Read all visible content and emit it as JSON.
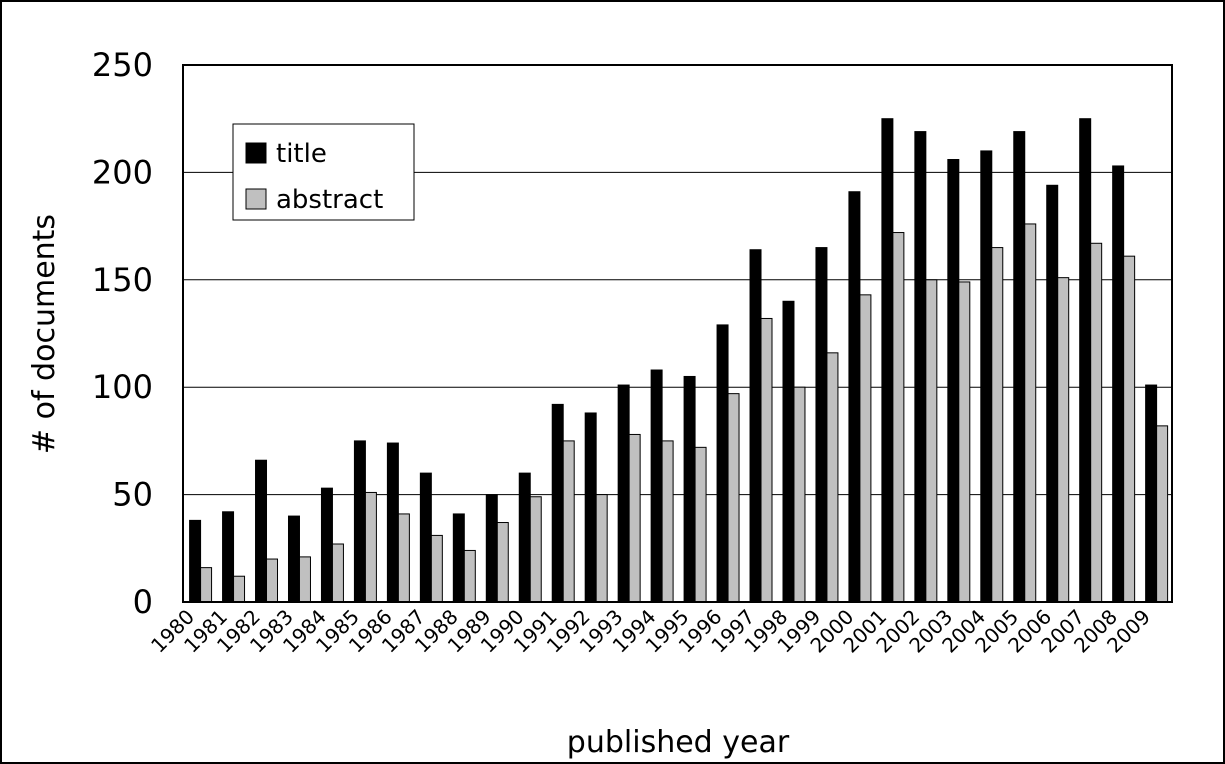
{
  "chart_data": {
    "type": "bar",
    "x_label": "published year",
    "y_label": "# of documents",
    "categories": [
      "1980",
      "1981",
      "1982",
      "1983",
      "1984",
      "1985",
      "1986",
      "1987",
      "1988",
      "1989",
      "1990",
      "1991",
      "1992",
      "1993",
      "1994",
      "1995",
      "1996",
      "1997",
      "1998",
      "1999",
      "2000",
      "2001",
      "2002",
      "2003",
      "2004",
      "2005",
      "2006",
      "2007",
      "2008",
      "2009"
    ],
    "series": [
      {
        "name": "title",
        "color": "#000000",
        "values": [
          38,
          42,
          66,
          40,
          53,
          75,
          74,
          60,
          41,
          50,
          60,
          92,
          88,
          101,
          108,
          105,
          129,
          164,
          140,
          165,
          191,
          225,
          219,
          206,
          210,
          219,
          194,
          225,
          203,
          101
        ]
      },
      {
        "name": "abstract",
        "color": "#c0c0c0",
        "values": [
          16,
          12,
          20,
          21,
          27,
          51,
          41,
          31,
          24,
          37,
          49,
          75,
          50,
          78,
          75,
          72,
          97,
          132,
          100,
          116,
          143,
          172,
          150,
          149,
          165,
          176,
          151,
          167,
          161,
          82
        ]
      }
    ],
    "ylim": [
      0,
      250
    ],
    "yticks": [
      0,
      50,
      100,
      150,
      200,
      250
    ],
    "grid": true,
    "legend": "upper left"
  }
}
